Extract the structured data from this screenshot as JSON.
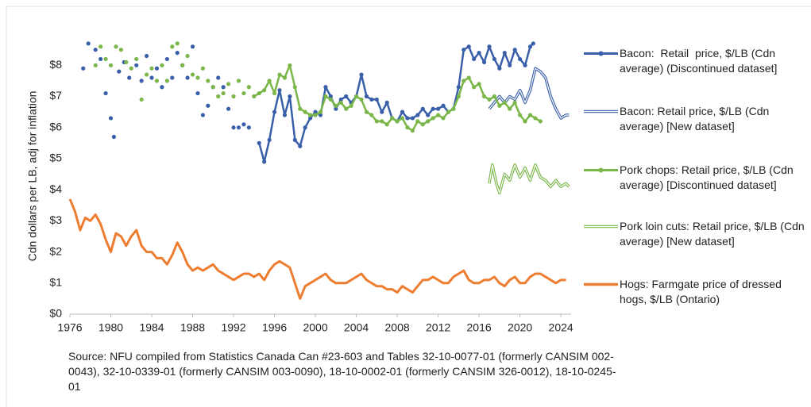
{
  "chart_data": {
    "type": "line",
    "y_label": "Cdn dollars per LB, adj for inflation",
    "source": "Source: NFU compiled from Statistics Canada Can #23-603 and Tables 32-10-0077-01 (formerly CANSIM 002-0043), 32-10-0339-01 (formerly CANSIM 003-0090), 18-10-0002-01 (formerly CANSIM 326-0012), 18-10-0245-01",
    "xlim": [
      1976,
      2025
    ],
    "xticks": [
      1976,
      1980,
      1984,
      1988,
      1992,
      1996,
      2000,
      2004,
      2008,
      2012,
      2016,
      2020,
      2024
    ],
    "ylim": [
      0,
      8.9
    ],
    "yticks": [
      {
        "value": 0,
        "label": "$0"
      },
      {
        "value": 1,
        "label": "$1"
      },
      {
        "value": 2,
        "label": "$2"
      },
      {
        "value": 3,
        "label": "$3"
      },
      {
        "value": 4,
        "label": "$4"
      },
      {
        "value": 5,
        "label": "$5"
      },
      {
        "value": 6,
        "label": "$6"
      },
      {
        "value": 7,
        "label": "$7"
      },
      {
        "value": 8,
        "label": "$8"
      }
    ],
    "series": [
      {
        "name": "Bacon:  Retail  price, $/LB (Cdn average) (Discontinued dataset]",
        "color": "#3a5faa",
        "style": "markers",
        "x": [
          1977.3,
          1977.55,
          1977.8,
          1978.05,
          1978.5,
          1978.75,
          1979,
          1979.25,
          1979.5,
          1979.75,
          1980,
          1980.15,
          1980.3,
          1980.55,
          1980.8,
          1981.05,
          1981.3,
          1981.55,
          1981.8,
          1982.15,
          1982.5,
          1982.75,
          1983,
          1983.25,
          1983.5,
          1983.75,
          1984,
          1984.25,
          1984.5,
          1984.75,
          1985,
          1985.25,
          1985.5,
          1985.75,
          1986,
          1986.25,
          1986.5,
          1986.75,
          1987,
          1987.25,
          1987.5,
          1987.75,
          1988,
          1988.25,
          1988.5,
          1988.75,
          1989,
          1989.25,
          1989.5,
          1989.75,
          1990,
          1990.25,
          1990.5,
          1990.75,
          1991,
          1991.25,
          1991.5,
          1991.75,
          1992,
          1992.25,
          1992.5,
          1992.75,
          1993,
          1993.25,
          1993.5,
          1994,
          1994.5,
          1995,
          1995.5,
          1996,
          1996.5,
          1997,
          1997.5,
          1998,
          1998.5,
          1999,
          1999.5,
          2000,
          2000.5,
          2001,
          2001.5,
          2002,
          2002.5,
          2003,
          2003.5,
          2004,
          2004.5,
          2005,
          2005.5,
          2006,
          2006.5,
          2007,
          2007.5,
          2008,
          2008.5,
          2009,
          2009.5,
          2010,
          2010.5,
          2011,
          2011.5,
          2012,
          2012.5,
          2013,
          2013.5,
          2014,
          2014.5,
          2015,
          2015.5,
          2016,
          2016.5,
          2017,
          2017.5,
          2018,
          2018.5,
          2019,
          2019.5,
          2020,
          2020.5,
          2021,
          2021.3
        ],
        "values": [
          7.9,
          null,
          8.7,
          null,
          8.5,
          null,
          8.2,
          null,
          7.1,
          null,
          6.3,
          null,
          5.7,
          null,
          7.8,
          null,
          8.1,
          null,
          7.6,
          null,
          8.0,
          null,
          7.5,
          null,
          8.3,
          null,
          7.6,
          null,
          7.9,
          null,
          7.3,
          null,
          8.2,
          null,
          7.6,
          null,
          8.4,
          null,
          8.0,
          null,
          7.6,
          null,
          8.6,
          null,
          7.1,
          null,
          6.4,
          null,
          6.7,
          null,
          7.3,
          null,
          7.6,
          null,
          7.3,
          null,
          6.6,
          null,
          6.0,
          null,
          6.0,
          null,
          6.1,
          null,
          6.0,
          null,
          5.5,
          4.9,
          5.6,
          6.5,
          7.2,
          6.4,
          7.0,
          5.6,
          5.4,
          6.0,
          6.3,
          6.5,
          6.4,
          7.3,
          7.0,
          6.6,
          6.9,
          7.0,
          6.8,
          7.0,
          7.7,
          7.0,
          6.9,
          6.9,
          6.5,
          6.8,
          6.3,
          6.2,
          6.5,
          6.3,
          6.3,
          6.4,
          6.6,
          6.4,
          6.6,
          6.6,
          6.7,
          6.5,
          6.6,
          7.3,
          8.5,
          8.6,
          8.2,
          8.4,
          8.1,
          8.6,
          8.2,
          7.9,
          8.4,
          8.0,
          8.5,
          8.2,
          8.0,
          8.6,
          8.7
        ]
      },
      {
        "name": "Bacon: Retail price, $/LB (Cdn average) [New dataset]",
        "color": "#3a5faa",
        "style": "double",
        "x": [
          2017,
          2017.5,
          2018,
          2018.5,
          2019,
          2019.5,
          2020,
          2020.5,
          2021,
          2021.5,
          2022,
          2022.5,
          2023,
          2023.5,
          2024,
          2024.5,
          2024.8
        ],
        "values": [
          6.6,
          6.8,
          7.0,
          6.8,
          7.0,
          6.9,
          7.2,
          6.8,
          7.2,
          7.9,
          7.8,
          7.6,
          7.0,
          6.6,
          6.3,
          6.4,
          6.4
        ]
      },
      {
        "name": "Pork chops: Retail price, $/LB (Cdn average) [Discontinued dataset]",
        "color": "#7ab648",
        "style": "markers",
        "x": [
          1978.5,
          1978.75,
          1979,
          1979.25,
          1979.5,
          1979.75,
          1980,
          1980.25,
          1980.5,
          1980.75,
          1981,
          1981.25,
          1981.5,
          1981.75,
          1982,
          1982.25,
          1982.5,
          1982.75,
          1983,
          1983.25,
          1983.5,
          1983.75,
          1984,
          1984.25,
          1984.5,
          1984.75,
          1985,
          1985.25,
          1985.5,
          1985.75,
          1986,
          1986.25,
          1986.5,
          1986.75,
          1987,
          1987.25,
          1987.5,
          1987.75,
          1988,
          1988.25,
          1988.5,
          1988.75,
          1989,
          1989.25,
          1989.5,
          1989.75,
          1990,
          1990.25,
          1990.5,
          1990.75,
          1991,
          1991.25,
          1991.5,
          1991.75,
          1992,
          1992.25,
          1992.5,
          1992.75,
          1993,
          1993.25,
          1993.5,
          1993.75,
          1994,
          1994.5,
          1995,
          1995.5,
          1996,
          1996.5,
          1997,
          1997.5,
          1998,
          1998.5,
          1999,
          1999.5,
          2000,
          2000.5,
          2001,
          2001.5,
          2002,
          2002.5,
          2003,
          2003.5,
          2004,
          2004.5,
          2005,
          2005.5,
          2006,
          2006.5,
          2007,
          2007.5,
          2008,
          2008.5,
          2009,
          2009.5,
          2010,
          2010.5,
          2011,
          2011.5,
          2012,
          2012.5,
          2013,
          2013.5,
          2014,
          2014.5,
          2015,
          2015.5,
          2016,
          2016.5,
          2017,
          2017.5,
          2018,
          2018.5,
          2019,
          2019.5,
          2020,
          2020.5,
          2021,
          2021.5,
          2022
        ],
        "values": [
          8.0,
          null,
          8.6,
          null,
          8.2,
          null,
          8.0,
          null,
          8.6,
          null,
          8.5,
          null,
          8.1,
          null,
          7.9,
          null,
          8.2,
          null,
          6.9,
          null,
          7.7,
          null,
          7.9,
          null,
          7.5,
          null,
          8.0,
          null,
          7.5,
          null,
          8.6,
          null,
          8.7,
          null,
          8.0,
          null,
          8.3,
          null,
          7.7,
          null,
          7.6,
          null,
          7.9,
          null,
          7.5,
          null,
          7.3,
          null,
          7.0,
          null,
          7.1,
          null,
          7.4,
          null,
          7.0,
          null,
          7.5,
          null,
          7.1,
          null,
          7.3,
          null,
          7.0,
          7.1,
          7.2,
          7.5,
          7.1,
          7.7,
          7.6,
          8.0,
          7.3,
          6.6,
          6.5,
          6.4,
          6.4,
          6.5,
          7.0,
          6.9,
          6.7,
          6.8,
          6.6,
          6.7,
          7.0,
          6.9,
          6.5,
          6.4,
          6.2,
          6.2,
          6.1,
          6.3,
          6.2,
          6.3,
          6.0,
          5.9,
          6.2,
          6.1,
          6.2,
          6.3,
          6.4,
          6.3,
          6.5,
          6.6,
          7.0,
          7.5,
          7.6,
          7.3,
          7.4,
          7.0,
          6.9,
          7.0,
          6.7,
          6.8,
          6.6,
          6.8,
          6.4,
          6.2,
          6.4,
          6.3,
          6.2
        ]
      },
      {
        "name": "Pork loin cuts: Retail price, $/LB (Cdn average) [New dataset]",
        "color": "#7ab648",
        "style": "double",
        "x": [
          2017,
          2017.3,
          2017.7,
          2018,
          2018.5,
          2019,
          2019.5,
          2020,
          2020.5,
          2021,
          2021.5,
          2022,
          2022.5,
          2023,
          2023.5,
          2024,
          2024.5,
          2024.8
        ],
        "values": [
          4.2,
          4.8,
          4.2,
          3.9,
          4.5,
          4.3,
          4.8,
          4.4,
          4.7,
          4.3,
          4.8,
          4.4,
          4.3,
          4.1,
          4.3,
          4.1,
          4.2,
          4.1
        ]
      },
      {
        "name": "Hogs: Farmgate price of dressed hogs, $/LB (Ontario)",
        "color": "#ed7d31",
        "style": "thick",
        "x": [
          1976,
          1976.5,
          1977,
          1977.5,
          1978,
          1978.5,
          1979,
          1979.5,
          1980,
          1980.5,
          1981,
          1981.5,
          1982,
          1982.5,
          1983,
          1983.5,
          1984,
          1984.5,
          1985,
          1985.5,
          1986,
          1986.5,
          1987,
          1987.5,
          1988,
          1988.5,
          1989,
          1989.5,
          1990,
          1990.5,
          1991,
          1991.5,
          1992,
          1992.5,
          1993,
          1993.5,
          1994,
          1994.5,
          1995,
          1995.5,
          1996,
          1996.5,
          1997,
          1997.5,
          1998,
          1998.5,
          1999,
          1999.5,
          2000,
          2000.5,
          2001,
          2001.5,
          2002,
          2002.5,
          2003,
          2003.5,
          2004,
          2004.5,
          2005,
          2005.5,
          2006,
          2006.5,
          2007,
          2007.5,
          2008,
          2008.5,
          2009,
          2009.5,
          2010,
          2010.5,
          2011,
          2011.5,
          2012,
          2012.5,
          2013,
          2013.5,
          2014,
          2014.5,
          2015,
          2015.5,
          2016,
          2016.5,
          2017,
          2017.5,
          2018,
          2018.5,
          2019,
          2019.5,
          2020,
          2020.5,
          2021,
          2021.5,
          2022,
          2022.5,
          2023,
          2023.5,
          2024,
          2024.5
        ],
        "values": [
          3.7,
          3.3,
          2.7,
          3.1,
          3.0,
          3.2,
          2.9,
          2.4,
          2.0,
          2.6,
          2.5,
          2.2,
          2.5,
          2.7,
          2.2,
          2.0,
          2.0,
          1.8,
          1.8,
          1.6,
          1.9,
          2.3,
          2.0,
          1.6,
          1.4,
          1.5,
          1.4,
          1.5,
          1.6,
          1.4,
          1.3,
          1.2,
          1.1,
          1.2,
          1.3,
          1.3,
          1.2,
          1.3,
          1.1,
          1.4,
          1.6,
          1.7,
          1.6,
          1.5,
          1.0,
          0.5,
          0.9,
          1.0,
          1.1,
          1.2,
          1.3,
          1.1,
          1.0,
          1.0,
          1.0,
          1.1,
          1.2,
          1.3,
          1.1,
          1.0,
          0.9,
          0.9,
          0.8,
          0.8,
          0.7,
          0.9,
          0.8,
          0.7,
          0.9,
          1.1,
          1.1,
          1.2,
          1.1,
          1.0,
          1.0,
          1.2,
          1.3,
          1.4,
          1.1,
          1.0,
          1.0,
          1.1,
          1.1,
          1.2,
          1.0,
          0.9,
          1.1,
          1.2,
          1.0,
          1.0,
          1.2,
          1.3,
          1.3,
          1.2,
          1.1,
          1.0,
          1.1,
          1.1
        ]
      }
    ]
  }
}
